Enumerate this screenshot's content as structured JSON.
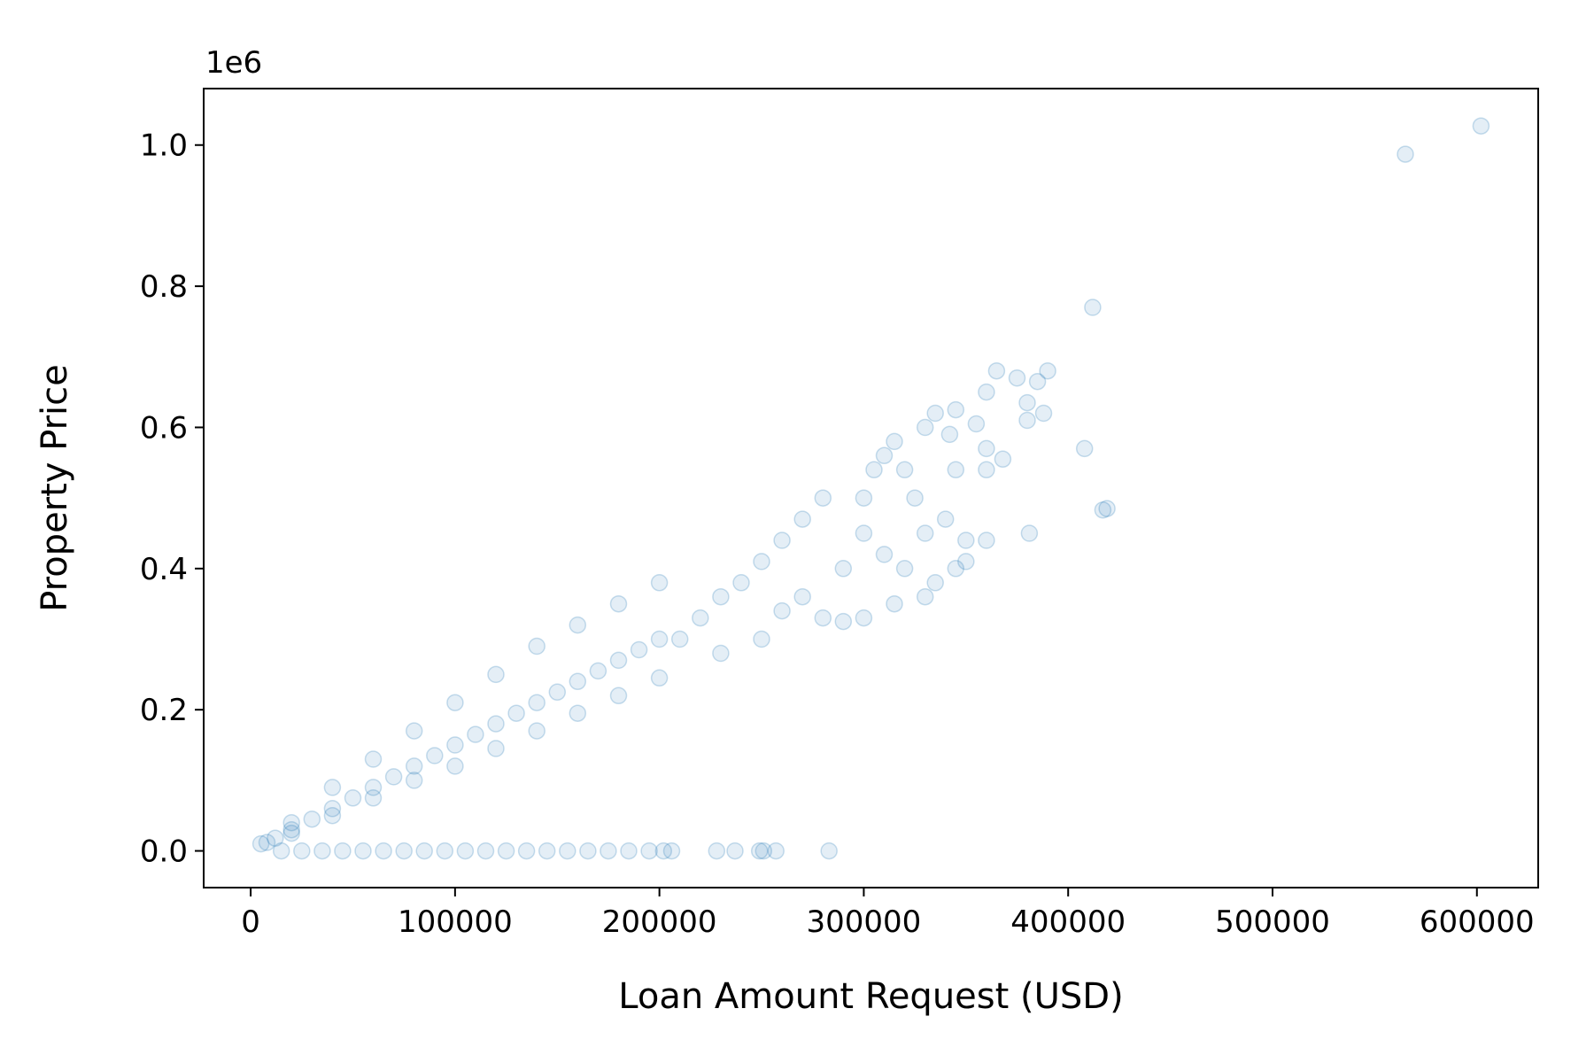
{
  "chart_data": {
    "type": "scatter",
    "xlabel": "Loan Amount Request (USD)",
    "ylabel": "Property Price",
    "y_offset_label": "1e6",
    "xlim": [
      -23000,
      630000
    ],
    "ylim": [
      -0.052,
      1.08
    ],
    "xticks": [
      0,
      100000,
      200000,
      300000,
      400000,
      500000,
      600000
    ],
    "xtick_labels": [
      "0",
      "100000",
      "200000",
      "300000",
      "400000",
      "500000",
      "600000"
    ],
    "yticks": [
      0.0,
      0.2,
      0.4,
      0.6,
      0.8,
      1.0
    ],
    "ytick_labels": [
      "0.0",
      "0.2",
      "0.4",
      "0.6",
      "0.8",
      "1.0"
    ],
    "grid": false,
    "marker_color": "#1f77b4",
    "marker_alpha": 0.12,
    "series": [
      {
        "points": [
          [
            5000,
            0.01
          ],
          [
            8000,
            0.012
          ],
          [
            12000,
            0.018
          ],
          [
            20000,
            0.03
          ],
          [
            30000,
            0.045
          ],
          [
            40000,
            0.06
          ],
          [
            50000,
            0.075
          ],
          [
            60000,
            0.09
          ],
          [
            70000,
            0.105
          ],
          [
            80000,
            0.12
          ],
          [
            90000,
            0.135
          ],
          [
            100000,
            0.15
          ],
          [
            110000,
            0.165
          ],
          [
            120000,
            0.18
          ],
          [
            130000,
            0.195
          ],
          [
            140000,
            0.21
          ],
          [
            150000,
            0.225
          ],
          [
            160000,
            0.24
          ],
          [
            170000,
            0.255
          ],
          [
            180000,
            0.27
          ],
          [
            190000,
            0.285
          ],
          [
            200000,
            0.3
          ],
          [
            20000,
            0.04
          ],
          [
            40000,
            0.09
          ],
          [
            60000,
            0.13
          ],
          [
            80000,
            0.17
          ],
          [
            100000,
            0.21
          ],
          [
            120000,
            0.25
          ],
          [
            140000,
            0.29
          ],
          [
            160000,
            0.32
          ],
          [
            180000,
            0.35
          ],
          [
            200000,
            0.38
          ],
          [
            20000,
            0.025
          ],
          [
            40000,
            0.05
          ],
          [
            60000,
            0.075
          ],
          [
            80000,
            0.1
          ],
          [
            100000,
            0.12
          ],
          [
            120000,
            0.145
          ],
          [
            140000,
            0.17
          ],
          [
            160000,
            0.195
          ],
          [
            180000,
            0.22
          ],
          [
            200000,
            0.245
          ],
          [
            210000,
            0.3
          ],
          [
            220000,
            0.33
          ],
          [
            230000,
            0.36
          ],
          [
            240000,
            0.38
          ],
          [
            250000,
            0.41
          ],
          [
            260000,
            0.44
          ],
          [
            270000,
            0.47
          ],
          [
            280000,
            0.5
          ],
          [
            230000,
            0.28
          ],
          [
            250000,
            0.3
          ],
          [
            260000,
            0.34
          ],
          [
            270000,
            0.36
          ],
          [
            280000,
            0.33
          ],
          [
            290000,
            0.4
          ],
          [
            300000,
            0.45
          ],
          [
            310000,
            0.42
          ],
          [
            300000,
            0.5
          ],
          [
            305000,
            0.54
          ],
          [
            310000,
            0.56
          ],
          [
            315000,
            0.58
          ],
          [
            320000,
            0.54
          ],
          [
            325000,
            0.5
          ],
          [
            330000,
            0.45
          ],
          [
            340000,
            0.47
          ],
          [
            350000,
            0.44
          ],
          [
            330000,
            0.6
          ],
          [
            335000,
            0.62
          ],
          [
            345000,
            0.625
          ],
          [
            355000,
            0.605
          ],
          [
            360000,
            0.65
          ],
          [
            365000,
            0.68
          ],
          [
            375000,
            0.67
          ],
          [
            380000,
            0.635
          ],
          [
            385000,
            0.665
          ],
          [
            390000,
            0.68
          ],
          [
            380000,
            0.61
          ],
          [
            388000,
            0.62
          ],
          [
            342000,
            0.59
          ],
          [
            360000,
            0.54
          ],
          [
            360000,
            0.57
          ],
          [
            368000,
            0.555
          ],
          [
            345000,
            0.54
          ],
          [
            335000,
            0.38
          ],
          [
            345000,
            0.4
          ],
          [
            350000,
            0.41
          ],
          [
            360000,
            0.44
          ],
          [
            381000,
            0.45
          ],
          [
            330000,
            0.36
          ],
          [
            320000,
            0.4
          ],
          [
            315000,
            0.35
          ],
          [
            300000,
            0.33
          ],
          [
            290000,
            0.325
          ],
          [
            408000,
            0.57
          ],
          [
            412000,
            0.77
          ],
          [
            417000,
            0.483
          ],
          [
            419000,
            0.485
          ],
          [
            565000,
            0.987
          ],
          [
            602000,
            1.027
          ],
          [
            15000,
            0.0
          ],
          [
            25000,
            0.0
          ],
          [
            35000,
            0.0
          ],
          [
            45000,
            0.0
          ],
          [
            55000,
            0.0
          ],
          [
            65000,
            0.0
          ],
          [
            75000,
            0.0
          ],
          [
            85000,
            0.0
          ],
          [
            95000,
            0.0
          ],
          [
            105000,
            0.0
          ],
          [
            115000,
            0.0
          ],
          [
            125000,
            0.0
          ],
          [
            135000,
            0.0
          ],
          [
            145000,
            0.0
          ],
          [
            155000,
            0.0
          ],
          [
            165000,
            0.0
          ],
          [
            175000,
            0.0
          ],
          [
            185000,
            0.0
          ],
          [
            195000,
            0.0
          ],
          [
            202000,
            0.0
          ],
          [
            206000,
            0.0
          ],
          [
            228000,
            0.0
          ],
          [
            237000,
            0.0
          ],
          [
            249000,
            0.0
          ],
          [
            251000,
            0.0
          ],
          [
            257000,
            0.0
          ],
          [
            283000,
            0.0
          ]
        ]
      }
    ]
  }
}
